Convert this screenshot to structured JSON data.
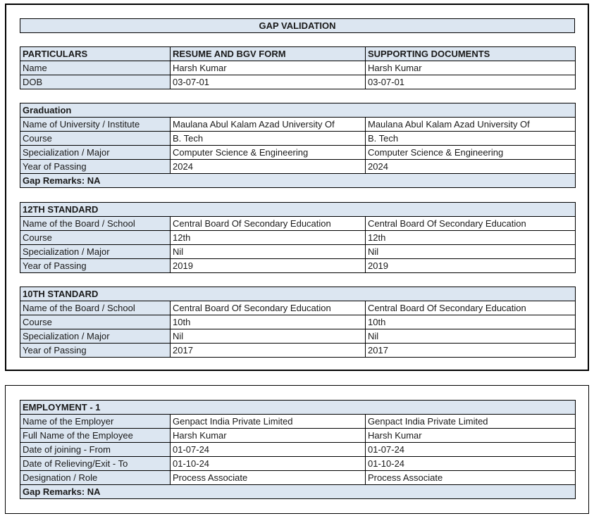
{
  "title": "GAP VALIDATION",
  "colors": {
    "label_bg": "#dce6f1",
    "border": "#000000"
  },
  "particulars": {
    "headers": [
      "PARTICULARS",
      "RESUME AND BGV FORM",
      "SUPPORTING DOCUMENTS"
    ],
    "rows": [
      [
        "Name",
        "Harsh Kumar",
        "Harsh Kumar"
      ],
      [
        "DOB",
        "03-07-01",
        "03-07-01"
      ]
    ]
  },
  "sections": [
    {
      "heading": "Graduation",
      "rows": [
        [
          "Name of University / Institute",
          "Maulana Abul Kalam Azad University Of",
          "Maulana Abul Kalam Azad University Of"
        ],
        [
          "Course",
          "B. Tech",
          "B. Tech"
        ],
        [
          "Specialization / Major",
          "Computer Science & Engineering",
          "Computer Science & Engineering"
        ],
        [
          "Year of Passing",
          "2024",
          "2024"
        ]
      ],
      "remarks": "Gap Remarks: NA"
    },
    {
      "heading": "12TH STANDARD",
      "rows": [
        [
          "Name of the Board / School",
          "Central Board Of Secondary Education",
          "Central Board Of Secondary Education"
        ],
        [
          "Course",
          "12th",
          "12th"
        ],
        [
          "Specialization / Major",
          "Nil",
          "Nil"
        ],
        [
          "Year of Passing",
          "2019",
          "2019"
        ]
      ]
    },
    {
      "heading": "10TH STANDARD",
      "rows": [
        [
          "Name of the Board / School",
          "Central Board Of Secondary Education",
          "Central Board Of Secondary Education"
        ],
        [
          "Course",
          "10th",
          "10th"
        ],
        [
          "Specialization / Major",
          "Nil",
          "Nil"
        ],
        [
          "Year of Passing",
          "2017",
          "2017"
        ]
      ]
    },
    {
      "heading": "EMPLOYMENT - 1",
      "rows": [
        [
          "Name of the Employer",
          "Genpact India Private Limited",
          "Genpact India Private Limited"
        ],
        [
          "Full Name of the Employee",
          "Harsh Kumar",
          "Harsh Kumar"
        ],
        [
          "Date of joining - From",
          "01-07-24",
          "01-07-24"
        ],
        [
          "Date of Relieving/Exit - To",
          "01-10-24",
          "01-10-24"
        ],
        [
          "Designation / Role",
          "Process Associate",
          "Process Associate"
        ]
      ],
      "remarks": "Gap Remarks: NA"
    }
  ]
}
